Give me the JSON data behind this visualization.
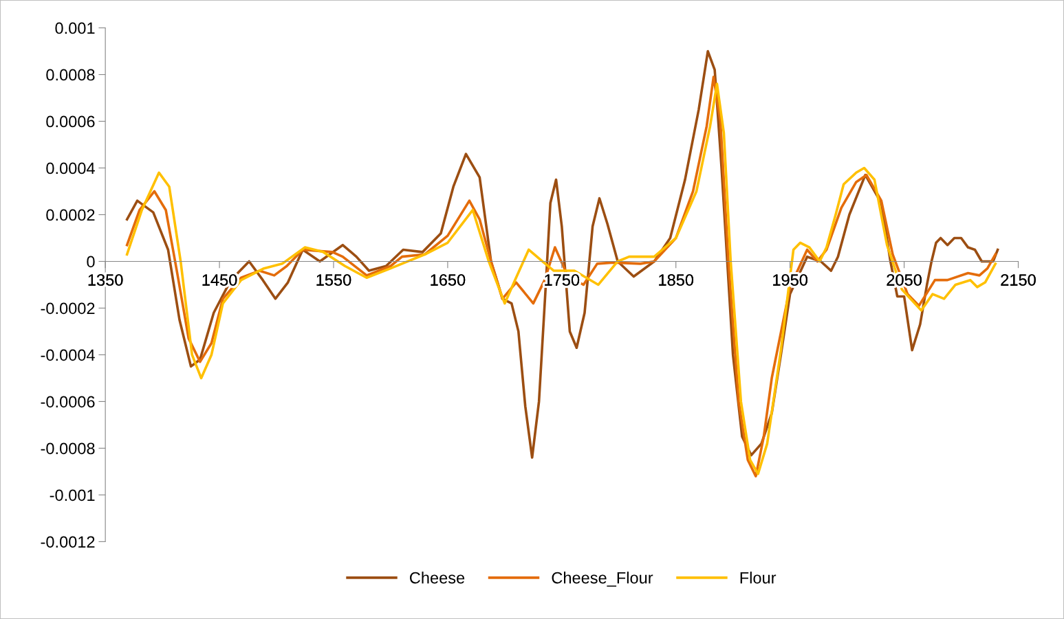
{
  "chart_data": {
    "type": "line",
    "xlim": [
      1350,
      2150
    ],
    "xticks": [
      1350,
      1450,
      1550,
      1650,
      1750,
      1850,
      1950,
      2050,
      2150
    ],
    "ylim": [
      -0.0012,
      0.001
    ],
    "yticks": [
      -0.0012,
      -0.001,
      -0.0008,
      -0.0006,
      -0.0004,
      -0.0002,
      0,
      0.0002,
      0.0004,
      0.0006,
      0.0008,
      0.001
    ],
    "grid": false,
    "legend": "bottom",
    "marker": "none",
    "line_style": "solid",
    "series": [
      {
        "name": "Cheese",
        "color": "#9c4e12",
        "x": [
          1369,
          1378,
          1392,
          1405,
          1415,
          1425,
          1433,
          1445,
          1460,
          1476,
          1488,
          1499,
          1510,
          1523,
          1538,
          1558,
          1570,
          1581,
          1596,
          1611,
          1628,
          1644,
          1655,
          1666,
          1678,
          1688,
          1698,
          1706,
          1712,
          1718,
          1724,
          1730,
          1736,
          1740,
          1745,
          1750,
          1757,
          1763,
          1770,
          1777,
          1783,
          1790,
          1799,
          1813,
          1831,
          1845,
          1858,
          1870,
          1878,
          1884,
          1890,
          1895,
          1900,
          1908,
          1916,
          1925,
          1934,
          1942,
          1950,
          1965,
          1977,
          1986,
          1992,
          2002,
          2016,
          2030,
          2038,
          2044,
          2050,
          2057,
          2064,
          2070,
          2074,
          2078,
          2082,
          2088,
          2094,
          2100,
          2106,
          2112,
          2118,
          2124,
          2128,
          2132
        ],
        "values": [
          0.00018,
          0.00026,
          0.00021,
          5e-05,
          -0.00025,
          -0.00045,
          -0.00042,
          -0.00022,
          -8e-05,
          0.0,
          -8e-05,
          -0.00016,
          -9e-05,
          5e-05,
          0.0,
          7e-05,
          2e-05,
          -4e-05,
          -2e-05,
          5e-05,
          4e-05,
          0.00012,
          0.00032,
          0.00046,
          0.00036,
          0.0,
          -0.00016,
          -0.00018,
          -0.0003,
          -0.00062,
          -0.00084,
          -0.0006,
          -0.0001,
          0.00025,
          0.00035,
          0.00015,
          -0.0003,
          -0.00037,
          -0.00022,
          0.00015,
          0.00027,
          0.00016,
          0.0,
          -6.5e-05,
          0.0,
          0.0001,
          0.00035,
          0.00065,
          0.0009,
          0.00082,
          0.0004,
          0.0,
          -0.0004,
          -0.00075,
          -0.00083,
          -0.00078,
          -0.00065,
          -0.0004,
          -0.00014,
          2e-05,
          0.0,
          -4e-05,
          2e-05,
          0.0002,
          0.00037,
          0.00025,
          0.0,
          -0.00015,
          -0.00015,
          -0.00038,
          -0.00027,
          -0.0001,
          0.0,
          8e-05,
          0.0001,
          7e-05,
          0.0001,
          0.0001,
          6e-05,
          5e-05,
          0.0,
          0.0,
          0.0,
          5e-05
        ]
      },
      {
        "name": "Cheese_Flour",
        "color": "#e46c0a",
        "x": [
          1369,
          1380,
          1393,
          1403,
          1413,
          1423,
          1433,
          1443,
          1453,
          1469,
          1485,
          1498,
          1509,
          1523,
          1549,
          1558,
          1579,
          1600,
          1610,
          1630,
          1650,
          1669,
          1678,
          1688,
          1698,
          1710,
          1725,
          1735,
          1744,
          1755,
          1769,
          1781,
          1795,
          1819,
          1831,
          1850,
          1865,
          1877,
          1883,
          1889,
          1896,
          1905,
          1913,
          1920,
          1927,
          1934,
          1950,
          1965,
          1974,
          1982,
          1995,
          2008,
          2017,
          2030,
          2040,
          2053,
          2063,
          2077,
          2088,
          2106,
          2116,
          2123,
          2130
        ],
        "values": [
          7e-05,
          0.00022,
          0.0003,
          0.00022,
          -5e-05,
          -0.00033,
          -0.00043,
          -0.00035,
          -0.00016,
          -7e-05,
          -4e-05,
          -6e-05,
          -2e-05,
          5e-05,
          4e-05,
          2e-05,
          -6e-05,
          -2e-05,
          2e-05,
          3e-05,
          0.00011,
          0.00026,
          0.00018,
          0.0,
          -0.00016,
          -9e-05,
          -0.00018,
          -8e-05,
          6e-05,
          -6e-05,
          -0.0001,
          -1e-05,
          -5e-06,
          -1e-05,
          0.0,
          0.0001,
          0.0003,
          0.00058,
          0.00079,
          0.0006,
          0.0,
          -0.0006,
          -0.00085,
          -0.00092,
          -0.00075,
          -0.0005,
          -0.00011,
          5e-05,
          0.0,
          5e-05,
          0.00023,
          0.00034,
          0.00037,
          0.00026,
          3e-05,
          -0.00014,
          -0.00019,
          -8e-05,
          -8e-05,
          -5e-05,
          -6e-05,
          -3e-05,
          3e-05
        ]
      },
      {
        "name": "Flour",
        "color": "#ffc000",
        "x": [
          1369,
          1382,
          1397,
          1406,
          1416,
          1426,
          1434,
          1443,
          1453,
          1469,
          1489,
          1505,
          1525,
          1541,
          1560,
          1579,
          1600,
          1630,
          1650,
          1672,
          1686,
          1700,
          1709,
          1721,
          1733,
          1743,
          1761,
          1782,
          1799,
          1809,
          1831,
          1850,
          1868,
          1880,
          1886,
          1892,
          1898,
          1907,
          1915,
          1922,
          1930,
          1942,
          1953,
          1959,
          1967,
          1976,
          1982,
          1990,
          1997,
          2008,
          2015,
          2024,
          2035,
          2048,
          2065,
          2075,
          2085,
          2095,
          2108,
          2114,
          2121,
          2130
        ],
        "values": [
          3e-05,
          0.00022,
          0.00038,
          0.00032,
          0.0,
          -0.0004,
          -0.0005,
          -0.0004,
          -0.00018,
          -8e-05,
          -3e-05,
          -1e-05,
          6e-05,
          4e-05,
          -2e-05,
          -7e-05,
          -3e-05,
          3e-05,
          8e-05,
          0.00022,
          0.0,
          -0.00018,
          -8e-05,
          5e-05,
          0.0,
          -4e-05,
          -4e-05,
          -0.0001,
          0.0,
          2e-05,
          2e-05,
          0.0001,
          0.0003,
          0.00058,
          0.00076,
          0.00055,
          0.0,
          -0.0006,
          -0.00085,
          -0.00091,
          -0.00078,
          -0.00038,
          5e-05,
          8e-05,
          6e-05,
          0.0,
          6e-05,
          0.0002,
          0.00033,
          0.00038,
          0.0004,
          0.00035,
          7e-05,
          -0.00012,
          -0.00021,
          -0.00014,
          -0.00016,
          -0.0001,
          -8e-05,
          -0.00011,
          -9e-05,
          -1e-05
        ]
      }
    ]
  }
}
